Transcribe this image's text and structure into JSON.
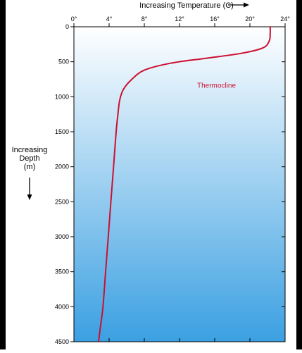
{
  "chart_data": {
    "type": "line",
    "title": "",
    "xlabel": "Increasing Temperature (C)",
    "ylabel_lines": [
      "Increasing",
      "Depth",
      "(m)"
    ],
    "x_ticks": [
      "0°",
      "4°",
      "8°",
      "12°",
      "16°",
      "20°",
      "24°"
    ],
    "x_tick_values": [
      0,
      4,
      8,
      12,
      16,
      20,
      24
    ],
    "y_ticks": [
      "0",
      "500",
      "1000",
      "1500",
      "2000",
      "2500",
      "3000",
      "3500",
      "4000",
      "4500"
    ],
    "y_tick_values": [
      0,
      500,
      1000,
      1500,
      2000,
      2500,
      3000,
      3500,
      4000,
      4500
    ],
    "xlim": [
      0,
      24
    ],
    "ylim": [
      0,
      4500
    ],
    "y_inverted": true,
    "x_axis_position": "top",
    "grid": false,
    "series": [
      {
        "name": "",
        "color": "#cc1030",
        "x": [
          22.3,
          22.3,
          22.2,
          21.5,
          19.0,
          15.0,
          11.0,
          8.0,
          6.5,
          5.6,
          5.2,
          5.0,
          4.8,
          4.5,
          4.2,
          3.9,
          3.6,
          3.3,
          3.0,
          2.8
        ],
        "y": [
          0,
          100,
          200,
          300,
          380,
          450,
          520,
          620,
          760,
          900,
          1050,
          1250,
          1500,
          2000,
          2500,
          3000,
          3500,
          4000,
          4300,
          4500
        ]
      }
    ],
    "annotations": [
      {
        "text": "Thermocline",
        "x": 14.0,
        "y": 870,
        "color": "#cc1030"
      }
    ],
    "background_gradient": {
      "top": "#ffffff",
      "bottom": "#3ba0e2"
    }
  }
}
